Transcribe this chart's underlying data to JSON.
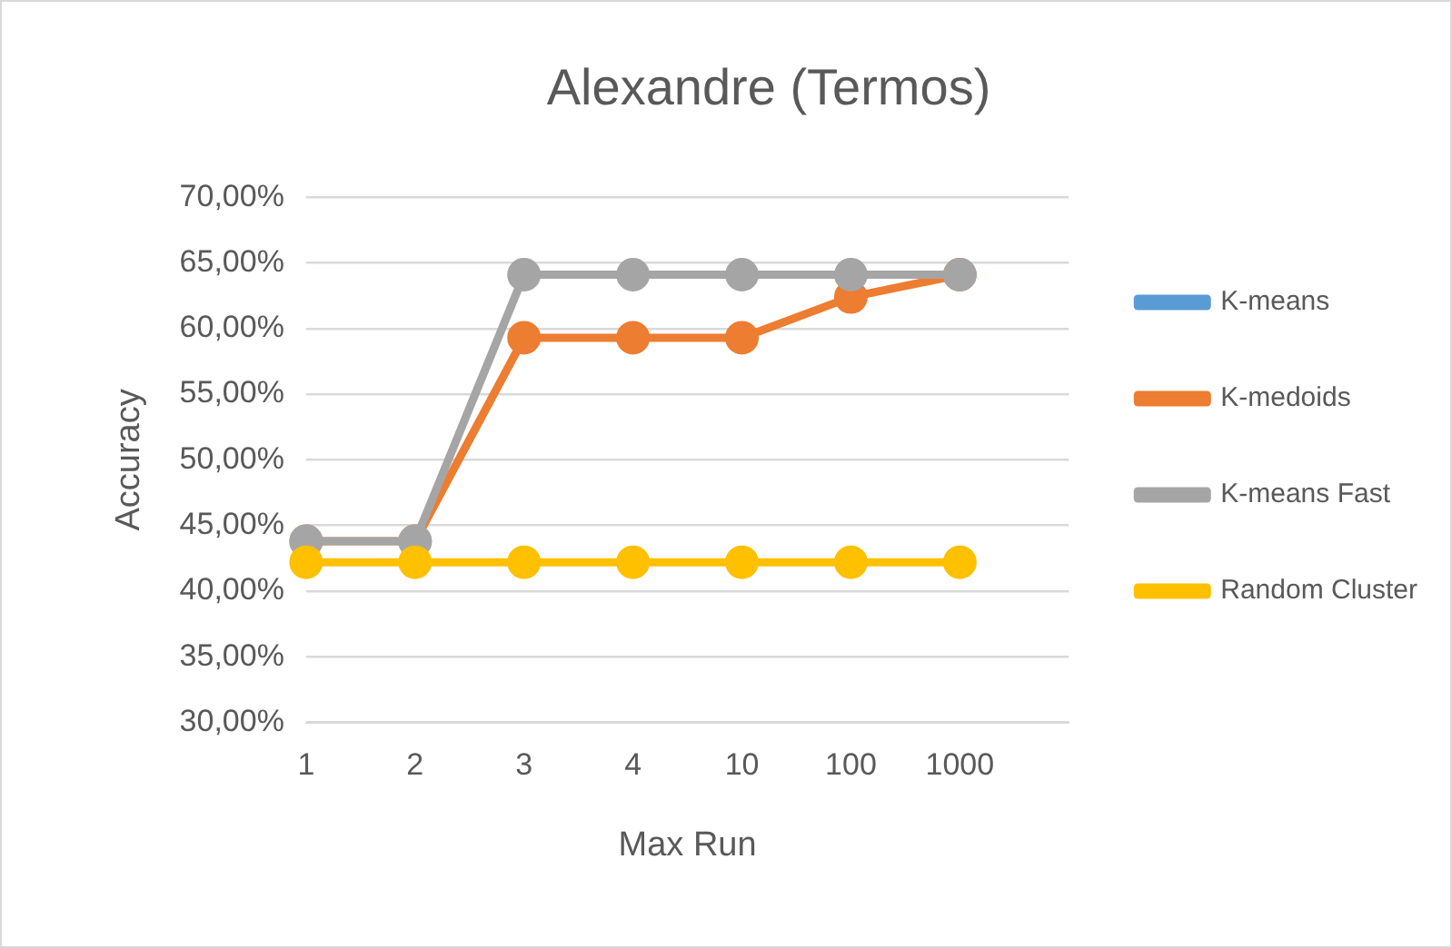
{
  "chart_data": {
    "type": "line",
    "title": "Alexandre (Termos)",
    "xlabel": "Max Run",
    "ylabel": "Accuracy",
    "categories": [
      "1",
      "2",
      "3",
      "4",
      "10",
      "100",
      "1000",
      null
    ],
    "series": [
      {
        "name": "K-means",
        "color": "#5b9bd5",
        "values": [
          null,
          null,
          null,
          null,
          null,
          null,
          null,
          null
        ]
      },
      {
        "name": "K-medoids",
        "color": "#ed7d31",
        "values": [
          43.8,
          43.8,
          59.3,
          59.3,
          59.3,
          62.4,
          64.1,
          null
        ]
      },
      {
        "name": "K-means Fast",
        "color": "#a5a5a5",
        "values": [
          43.8,
          43.8,
          64.1,
          64.1,
          64.1,
          64.1,
          64.1,
          null
        ]
      },
      {
        "name": "Random Cluster",
        "color": "#ffc000",
        "values": [
          42.2,
          42.2,
          42.2,
          42.2,
          42.2,
          42.2,
          42.2,
          null
        ]
      }
    ],
    "ylim": [
      30,
      70
    ],
    "yticks": [
      {
        "value": 30,
        "label": "30,00%"
      },
      {
        "value": 35,
        "label": "35,00%"
      },
      {
        "value": 40,
        "label": "40,00%"
      },
      {
        "value": 45,
        "label": "45,00%"
      },
      {
        "value": 50,
        "label": "50,00%"
      },
      {
        "value": 55,
        "label": "55,00%"
      },
      {
        "value": 60,
        "label": "60,00%"
      },
      {
        "value": 65,
        "label": "65,00%"
      },
      {
        "value": 70,
        "label": "70,00%"
      }
    ],
    "grid": "y",
    "legend": "right",
    "marker": "circle",
    "line_style": "solid"
  }
}
